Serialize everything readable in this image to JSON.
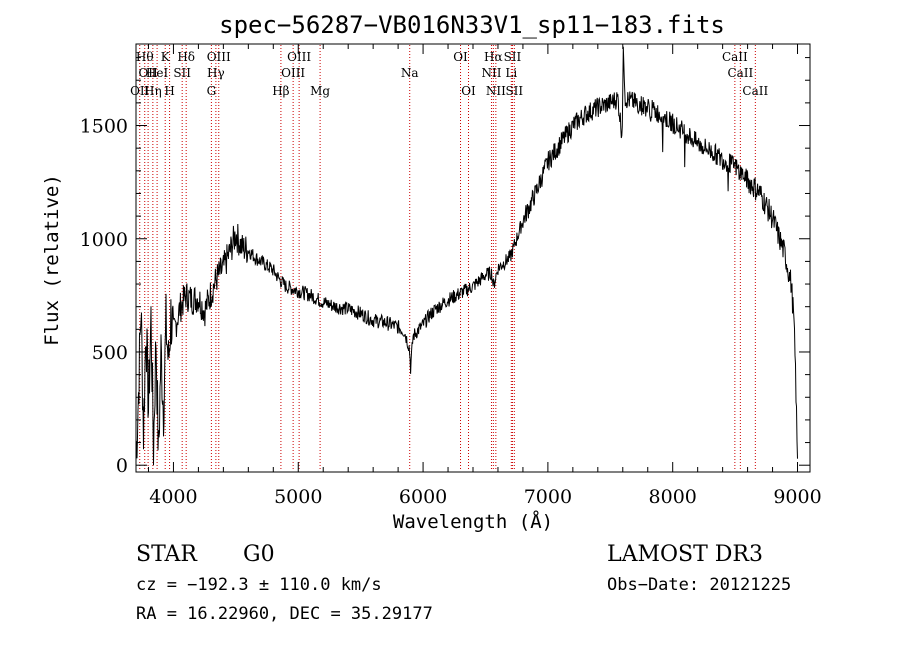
{
  "chart_data": {
    "type": "line",
    "title": "spec−56287−VB016N33V1_sp11−183.fits",
    "xlabel": "Wavelength (Å)",
    "ylabel": "Flux (relative)",
    "xlim": [
      3700,
      9100
    ],
    "ylim": [
      -30,
      1860
    ],
    "xticks": [
      4000,
      5000,
      6000,
      7000,
      8000,
      9000
    ],
    "yticks": [
      0,
      500,
      1000,
      1500
    ],
    "x_tick_labels": [
      "4000",
      "5000",
      "6000",
      "7000",
      "8000",
      "9000"
    ],
    "y_tick_labels": [
      "0",
      "500",
      "1000",
      "1500"
    ],
    "grid": false,
    "series": [
      {
        "name": "flux",
        "color": "#000000",
        "noise_seed": 7,
        "points": [
          [
            3700,
            30
          ],
          [
            3720,
            320
          ],
          [
            3740,
            700
          ],
          [
            3760,
            150
          ],
          [
            3780,
            620
          ],
          [
            3800,
            250
          ],
          [
            3820,
            650
          ],
          [
            3840,
            80
          ],
          [
            3860,
            560
          ],
          [
            3880,
            40
          ],
          [
            3900,
            500
          ],
          [
            3920,
            250
          ],
          [
            3940,
            620
          ],
          [
            3960,
            450
          ],
          [
            3980,
            660
          ],
          [
            4000,
            580
          ],
          [
            4050,
            690
          ],
          [
            4100,
            750
          ],
          [
            4150,
            730
          ],
          [
            4200,
            740
          ],
          [
            4250,
            680
          ],
          [
            4300,
            760
          ],
          [
            4350,
            830
          ],
          [
            4400,
            870
          ],
          [
            4450,
            940
          ],
          [
            4500,
            1020
          ],
          [
            4550,
            960
          ],
          [
            4600,
            950
          ],
          [
            4650,
            920
          ],
          [
            4700,
            900
          ],
          [
            4750,
            880
          ],
          [
            4800,
            860
          ],
          [
            4850,
            820
          ],
          [
            4900,
            790
          ],
          [
            4950,
            780
          ],
          [
            5000,
            770
          ],
          [
            5100,
            750
          ],
          [
            5200,
            720
          ],
          [
            5300,
            700
          ],
          [
            5400,
            690
          ],
          [
            5500,
            670
          ],
          [
            5600,
            640
          ],
          [
            5700,
            630
          ],
          [
            5800,
            610
          ],
          [
            5850,
            590
          ],
          [
            5890,
            520
          ],
          [
            5900,
            430
          ],
          [
            5920,
            570
          ],
          [
            5950,
            590
          ],
          [
            6000,
            620
          ],
          [
            6050,
            660
          ],
          [
            6100,
            690
          ],
          [
            6200,
            730
          ],
          [
            6300,
            760
          ],
          [
            6400,
            790
          ],
          [
            6500,
            840
          ],
          [
            6550,
            850
          ],
          [
            6563,
            790
          ],
          [
            6600,
            870
          ],
          [
            6700,
            920
          ],
          [
            6800,
            1080
          ],
          [
            6900,
            1200
          ],
          [
            7000,
            1340
          ],
          [
            7100,
            1420
          ],
          [
            7200,
            1500
          ],
          [
            7300,
            1550
          ],
          [
            7400,
            1580
          ],
          [
            7500,
            1600
          ],
          [
            7560,
            1620
          ],
          [
            7594,
            1460
          ],
          [
            7605,
            1840
          ],
          [
            7620,
            1620
          ],
          [
            7700,
            1600
          ],
          [
            7800,
            1580
          ],
          [
            7900,
            1550
          ],
          [
            8000,
            1510
          ],
          [
            8100,
            1470
          ],
          [
            8200,
            1420
          ],
          [
            8300,
            1390
          ],
          [
            8400,
            1350
          ],
          [
            8500,
            1320
          ],
          [
            8600,
            1260
          ],
          [
            8700,
            1200
          ],
          [
            8800,
            1090
          ],
          [
            8900,
            930
          ],
          [
            8950,
            800
          ],
          [
            8970,
            650
          ],
          [
            8985,
            400
          ],
          [
            9000,
            0
          ]
        ]
      }
    ],
    "spectral_lines": [
      {
        "wave": 3730,
        "label": "OII",
        "row": 3
      },
      {
        "wave": 3770,
        "label": "Hθ",
        "row": 1
      },
      {
        "wave": 3797,
        "label": "OII",
        "row": 2
      },
      {
        "wave": 3835,
        "label": "Hη",
        "row": 3
      },
      {
        "wave": 3869,
        "label": "HeI",
        "row": 2
      },
      {
        "wave": 3934,
        "label": "K",
        "row": 1
      },
      {
        "wave": 3969,
        "label": "H",
        "row": 3
      },
      {
        "wave": 4070,
        "label": "SII",
        "row": 2
      },
      {
        "wave": 4102,
        "label": "Hδ",
        "row": 1
      },
      {
        "wave": 4304,
        "label": "G",
        "row": 3
      },
      {
        "wave": 4340,
        "label": "Hγ",
        "row": 2
      },
      {
        "wave": 4363,
        "label": "OIII",
        "row": 1
      },
      {
        "wave": 4861,
        "label": "Hβ",
        "row": 3
      },
      {
        "wave": 4959,
        "label": "OIII",
        "row": 2
      },
      {
        "wave": 5007,
        "label": "OIII",
        "row": 1
      },
      {
        "wave": 5175,
        "label": "Mg",
        "row": 3
      },
      {
        "wave": 5893,
        "label": "Na",
        "row": 2
      },
      {
        "wave": 6300,
        "label": "OI",
        "row": 1
      },
      {
        "wave": 6364,
        "label": "OI",
        "row": 3
      },
      {
        "wave": 6548,
        "label": "NII",
        "row": 2
      },
      {
        "wave": 6563,
        "label": "Hα",
        "row": 1
      },
      {
        "wave": 6583,
        "label": "NII",
        "row": 3
      },
      {
        "wave": 6707,
        "label": "Li",
        "row": 2
      },
      {
        "wave": 6716,
        "label": "SII",
        "row": 1
      },
      {
        "wave": 6731,
        "label": "SII",
        "row": 3
      },
      {
        "wave": 8498,
        "label": "CaII",
        "row": 1
      },
      {
        "wave": 8542,
        "label": "CaII",
        "row": 2
      },
      {
        "wave": 8662,
        "label": "CaII",
        "row": 3
      }
    ],
    "line_color": "#cc0000"
  },
  "info": {
    "class_label": "STAR",
    "subclass": "G0",
    "survey": "LAMOST DR3",
    "redshift": "cz = −192.3 ± 110.0 km/s",
    "obs_date": "Obs−Date: 20121225",
    "coords": "RA =  16.22960, DEC =  35.29177"
  }
}
